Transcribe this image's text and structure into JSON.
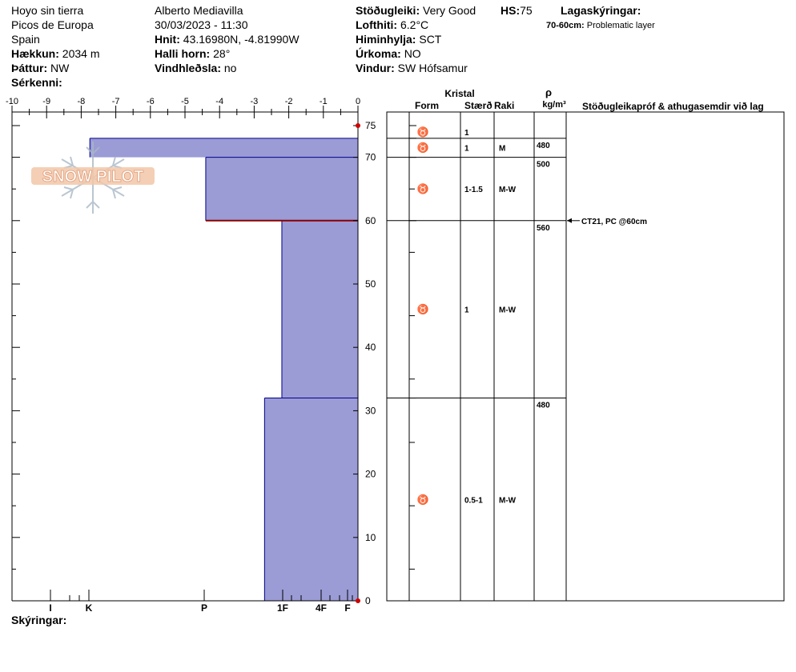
{
  "header": {
    "location": "Hoyo sin tierra",
    "region": "Picos de Europa",
    "country": "Spain",
    "elevation_label": "Hækkun:",
    "elevation_value": "2034 m",
    "aspect_label": "Þáttur:",
    "aspect_value": "NW",
    "features_label": "Sérkenni:",
    "observer": "Alberto Mediavilla",
    "datetime": "30/03/2023 - 11:30",
    "coords_label": "Hnit:",
    "coords_value": "43.16980N, -4.81990W",
    "slope_label": "Halli horn:",
    "slope_value": "28°",
    "wind_loading_label": "Vindhleðsla:",
    "wind_loading_value": "no",
    "stability_label": "Stöðugleiki:",
    "stability_value": "Very Good",
    "hs_label": "HS:",
    "hs_value": "75",
    "air_temp_label": "Lofthiti:",
    "air_temp_value": "6.2°C",
    "sky_label": "Himinhylja:",
    "sky_value": "SCT",
    "precip_label": "Úrkoma:",
    "precip_value": "NO",
    "wind_label": "Vindur:",
    "wind_value": "SW Hófsamur",
    "layer_notes_label": "Lagaskýringar:",
    "layer_note_depth": "70-60cm:",
    "layer_note_text": "Problematic layer"
  },
  "footer": {
    "notes_label": "Skýringar:"
  },
  "logo_text": "SNOW PILOT",
  "colors": {
    "hardness_fill": "#9b9bd6",
    "layer_line": "#00008b",
    "problem_line": "#8b0000",
    "marker": "#cc0000"
  },
  "chart_data": {
    "type": "snow-profile",
    "temp_axis": {
      "ticks": [
        "-10",
        "-9",
        "-8",
        "-7",
        "-6",
        "-5",
        "-4",
        "-3",
        "-2",
        "-1",
        "0"
      ],
      "range": [
        -10,
        0
      ]
    },
    "hardness_axis": {
      "labels": [
        "I",
        "K",
        "P",
        "1F",
        "4F",
        "F"
      ]
    },
    "depth_axis": {
      "ticks": [
        "0",
        "10",
        "20",
        "30",
        "40",
        "50",
        "60",
        "70",
        "75"
      ],
      "range": [
        0,
        75
      ]
    },
    "layers": [
      {
        "top": 75,
        "bottom": 73,
        "hardness_temp": 0,
        "form": "♉",
        "size": "1",
        "moisture": "",
        "density": ""
      },
      {
        "top": 73,
        "bottom": 70,
        "hardness_temp": -7.75,
        "form": "♉",
        "size": "1",
        "moisture": "M",
        "density": "480"
      },
      {
        "top": 70,
        "bottom": 60,
        "hardness_temp": -4.4,
        "form": "♉",
        "size": "1-1.5",
        "moisture": "M-W",
        "density": "500"
      },
      {
        "top": 60,
        "bottom": 32,
        "hardness_temp": -2.2,
        "form": "♉",
        "size": "1",
        "moisture": "M-W",
        "density": "560"
      },
      {
        "top": 32,
        "bottom": 0,
        "hardness_temp": -2.7,
        "form": "♉",
        "size": "0.5-1",
        "moisture": "M-W",
        "density": "480"
      }
    ],
    "problem_layer_depth": 60,
    "table_headers": {
      "crystal": "Kristal",
      "form": "Form",
      "size": "Stærð",
      "moisture": "Raki",
      "rho": "ρ",
      "density_unit": "kg/m³",
      "tests": "Stöðugleikapróf & athugasemdir við lag"
    },
    "test_result": {
      "depth": 60,
      "text": "CT21, PC @60cm"
    }
  }
}
